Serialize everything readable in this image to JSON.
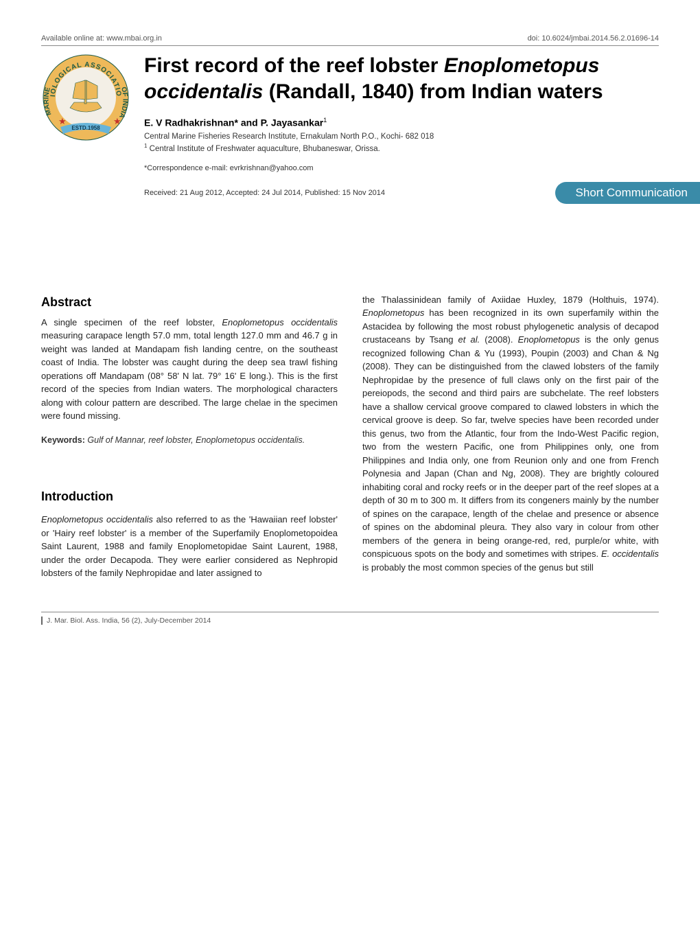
{
  "top": {
    "left": "Available online at: www.mbai.org.in",
    "right": "doi: 10.6024/jmbai.2014.56.2.01696-14"
  },
  "logo": {
    "band_text_top": "BIOLOGICAL",
    "band_text_right": "ASSOCIATION",
    "band_text_left": "MARINE",
    "band_text_bottom": "OF INDIA",
    "foot_text": "ESTD.1958",
    "colors": {
      "outer_ring_bg": "#eeb95a",
      "outer_ring_text": "#1d5a46",
      "ribbon": "#67b4d8",
      "ribbon_text": "#0e3a52",
      "ship_fill": "#eeb95a",
      "ship_bg": "#f3efe6",
      "stars": "#c4312a"
    }
  },
  "title_html": "First record of the reef lobster <i>Enoplometopus occidentalis</i> (Randall, 1840) from Indian waters",
  "authors_html": "E. V Radhakrishnan* and P. Jayasankar<sup>1</sup>",
  "affiliations": [
    "Central Marine Fisheries Research Institute, Ernakulam North P.O., Kochi- 682 018",
    "<sup>1</sup> Central Institute of Freshwater aquaculture, Bhubaneswar, Orissa."
  ],
  "correspondence": "*Correspondence e-mail: evrkrishnan@yahoo.com",
  "dates": "Received: 21 Aug 2012, Accepted: 24 Jul 2014, Published: 15 Nov 2014",
  "badge": "Short Communication",
  "badge_bg": "#3a8ba8",
  "badge_text_color": "#ffffff",
  "left_column": {
    "abstract_head": "Abstract",
    "abstract_html": "A single specimen of the reef lobster, <i>Enoplometopus occidentalis</i> measuring carapace length  57.0 mm, total length 127.0 mm and  46.7 g in weight was landed at Mandapam fish landing centre, on the southeast coast of India. The lobster was caught during the deep sea trawl fishing operations off Mandapam (08° 58' N lat. 79° 16' E long.). This is the first record of the species from Indian waters. The morphological characters along with colour pattern are described. The large chelae in the specimen were found missing.",
    "keywords_label": "Keywords:",
    "keywords_html": "Gulf of Mannar, reef lobster, Enoplometopus occidentalis.",
    "intro_head": "Introduction",
    "intro_html": "<i>Enoplometopus occidentalis</i> also referred to as the 'Hawaiian reef lobster' or 'Hairy reef lobster' is a member of the Superfamily Enoplometopoidea Saint Laurent, 1988 and family Enoplometopidae Saint Laurent, 1988, under the order Decapoda. They were earlier considered as Nephropid lobsters of the family Nephropidae and later assigned to"
  },
  "right_column": {
    "body_html": "the Thalassinidean family of Axiidae Huxley, 1879 (Holthuis, 1974). <i>Enoplometopus</i> has been recognized in its own superfamily within the Astacidea by following the most robust phylogenetic analysis of decapod crustaceans by Tsang <i>et al.</i> (2008). <i>Enoplometopus</i> is the only genus recognized following Chan &amp; Yu (1993), Poupin (2003) and Chan &amp; Ng (2008). They can be distinguished from the clawed lobsters of the family Nephropidae by the presence of full claws only on the first pair of the pereiopods, the second and third pairs are subchelate. The reef lobsters have a shallow cervical groove compared to clawed lobsters in which the cervical groove is deep. So far, twelve species have been recorded under this genus, two from the Atlantic, four from the Indo-West Pacific region, two from the western Pacific, one from Philippines only, one from Philippines and India only, one from Reunion only and one from French Polynesia and Japan (Chan and Ng, 2008). They are brightly coloured inhabiting coral and rocky reefs or in the deeper part of the reef slopes at a depth of 30 m to 300 m. It differs from its congeners mainly by the number of spines on the carapace, length of the chelae and presence or absence of spines on the abdominal pleura. They also vary in colour from other members of the genera in being orange-red, red, purple/or white, with conspicuous spots on the body and sometimes with stripes. <i>E. occidentalis</i> is probably the most common species of the genus but still"
  },
  "footer": "J. Mar. Biol. Ass. India, 56 (2), July-December 2014"
}
